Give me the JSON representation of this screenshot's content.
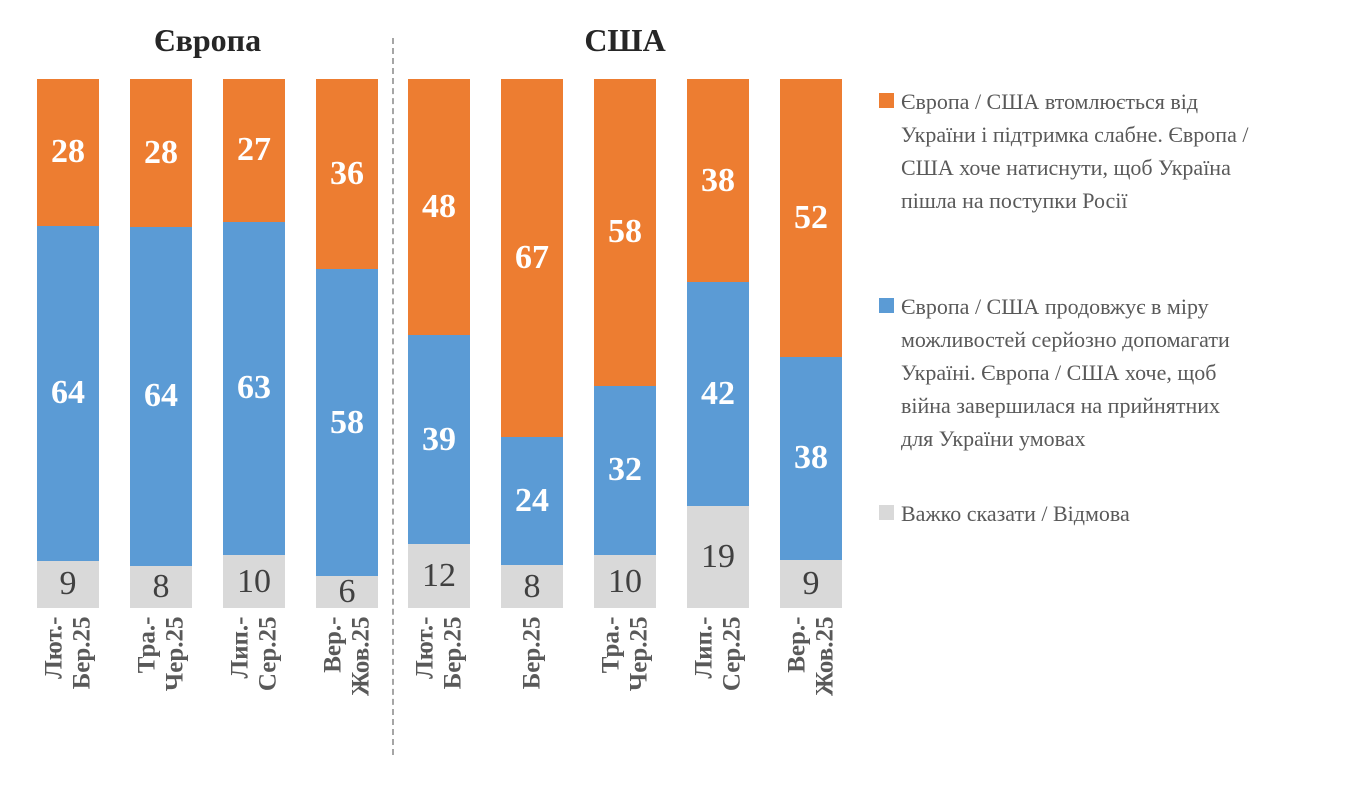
{
  "chart_data": {
    "type": "bar",
    "subtype": "stacked-100-percent",
    "unit": "percent",
    "value_range": [
      0,
      100
    ],
    "grid": false,
    "series": [
      {
        "id": "tired-pressure-concessions",
        "color": "#ED7D31",
        "label_style": "light"
      },
      {
        "id": "continues-support",
        "color": "#5B9BD5",
        "label_style": "light"
      },
      {
        "id": "hard-to-say-refusal",
        "color": "#D9D9D9",
        "label_style": "dark"
      }
    ],
    "stack_order": "top-to-bottom",
    "groups": [
      {
        "title": "Європа",
        "bars": [
          {
            "category": "Лют.-Бер.25",
            "category_lines": [
              "Лют.-",
              "Бер.25"
            ],
            "values": [
              28,
              64,
              9
            ]
          },
          {
            "category": "Тра.-Чер.25",
            "category_lines": [
              "Тра.-",
              "Чер.25"
            ],
            "values": [
              28,
              64,
              8
            ]
          },
          {
            "category": "Лип.-Сер.25",
            "category_lines": [
              "Лип.-",
              "Сер.25"
            ],
            "values": [
              27,
              63,
              10
            ]
          },
          {
            "category": "Вер.-Жов.25",
            "category_lines": [
              "Вер.-",
              "Жов.25"
            ],
            "values": [
              36,
              58,
              6
            ]
          }
        ]
      },
      {
        "title": "США",
        "bars": [
          {
            "category": "Лют.-Бер.25",
            "category_lines": [
              "Лют.-",
              "Бер.25"
            ],
            "values": [
              48,
              39,
              12
            ]
          },
          {
            "category": "Бер.25",
            "category_lines": [
              "Бер.25"
            ],
            "values": [
              67,
              24,
              8
            ]
          },
          {
            "category": "Тра.-Чер.25",
            "category_lines": [
              "Тра.-",
              "Чер.25"
            ],
            "values": [
              58,
              32,
              10
            ]
          },
          {
            "category": "Лип.-Сер.25",
            "category_lines": [
              "Лип.-",
              "Сер.25"
            ],
            "values": [
              38,
              42,
              19
            ]
          },
          {
            "category": "Вер.-Жов.25",
            "category_lines": [
              "Вер.-",
              "Жов.25"
            ],
            "values": [
              52,
              38,
              9
            ]
          }
        ]
      }
    ],
    "legend": [
      {
        "series": "tired-pressure-concessions",
        "color": "#ED7D31",
        "label": "Європа / США втомлюється від України і підтримка слабне. Європа / США хоче натиснути, щоб Україна пішла на поступки Росії",
        "lines": [
          "Європа / США втомлюється від",
          "України і підтримка слабне. Європа /",
          "США хоче натиснути, щоб Україна",
          "пішла на поступки Росії"
        ]
      },
      {
        "series": "continues-support",
        "color": "#5B9BD5",
        "label": "Європа / США продовжує в міру можливостей серйозно допомагати Україні. Європа / США хоче, щоб війна завершилася на прийнятних для України умовах",
        "lines": [
          "Європа / США продовжує в міру",
          "можливостей серйозно допомагати",
          "Україні. Європа / США хоче, щоб",
          "війна завершилася на прийнятних",
          "для України умовах"
        ]
      },
      {
        "series": "hard-to-say-refusal",
        "color": "#D9D9D9",
        "label": "Важко сказати / Відмова",
        "lines": [
          "Важко сказати / Відмова"
        ]
      }
    ],
    "layout_hints": {
      "legend_position": "right",
      "group_divider": "vertical-dashed-line",
      "divider_color": "#A6A6A6",
      "value_labels": "inside-center"
    }
  }
}
